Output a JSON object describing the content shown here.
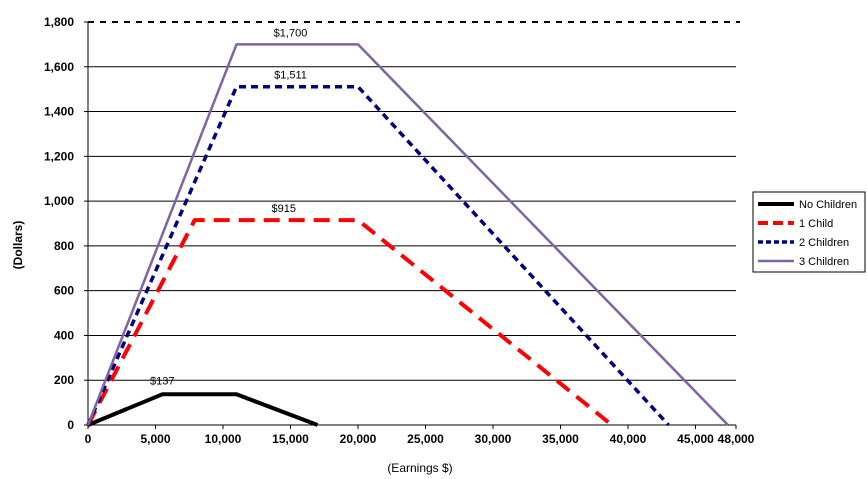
{
  "chart_data": {
    "type": "line",
    "xlabel": "(Earnings $)",
    "ylabel": "(Dollars)",
    "xlim": [
      0,
      48000
    ],
    "ylim": [
      0,
      1800
    ],
    "x_ticks": [
      0,
      5000,
      10000,
      15000,
      20000,
      25000,
      30000,
      35000,
      40000,
      45000,
      48000
    ],
    "x_tick_labels": [
      "0",
      "5,000",
      "10,000",
      "15,000",
      "20,000",
      "25,000",
      "30,000",
      "35,000",
      "40,000",
      "45,000",
      "48,000"
    ],
    "y_ticks": [
      0,
      200,
      400,
      600,
      800,
      1000,
      1200,
      1400,
      1600,
      1800
    ],
    "y_tick_labels": [
      "0",
      "200",
      "400",
      "600",
      "800",
      "1,000",
      "1,200",
      "1,400",
      "1,600",
      "1,800"
    ],
    "grid": "horizontal",
    "legend_position": "right",
    "series": [
      {
        "name": "No Children",
        "color": "#000000",
        "points": [
          [
            0,
            0
          ],
          [
            5500,
            137
          ],
          [
            11000,
            137
          ],
          [
            17000,
            0
          ]
        ],
        "annotation": {
          "text": "$137",
          "x": 5500,
          "y": 137
        }
      },
      {
        "name": "1 Child",
        "color": "#ff0000",
        "points": [
          [
            0,
            0
          ],
          [
            7900,
            915
          ],
          [
            20000,
            915
          ],
          [
            38800,
            0
          ]
        ],
        "annotation": {
          "text": "$915",
          "x": 14500,
          "y": 915
        }
      },
      {
        "name": "2 Children",
        "color": "#000080",
        "points": [
          [
            0,
            0
          ],
          [
            11000,
            1511
          ],
          [
            20000,
            1511
          ],
          [
            43000,
            0
          ]
        ],
        "annotation": {
          "text": "$1,511",
          "x": 15000,
          "y": 1511
        }
      },
      {
        "name": "3 Children",
        "color": "#8064a2",
        "points": [
          [
            0,
            0
          ],
          [
            11000,
            1700
          ],
          [
            20000,
            1700
          ],
          [
            47400,
            0
          ]
        ],
        "annotation": {
          "text": "$1,700",
          "x": 15000,
          "y": 1700
        }
      }
    ]
  }
}
